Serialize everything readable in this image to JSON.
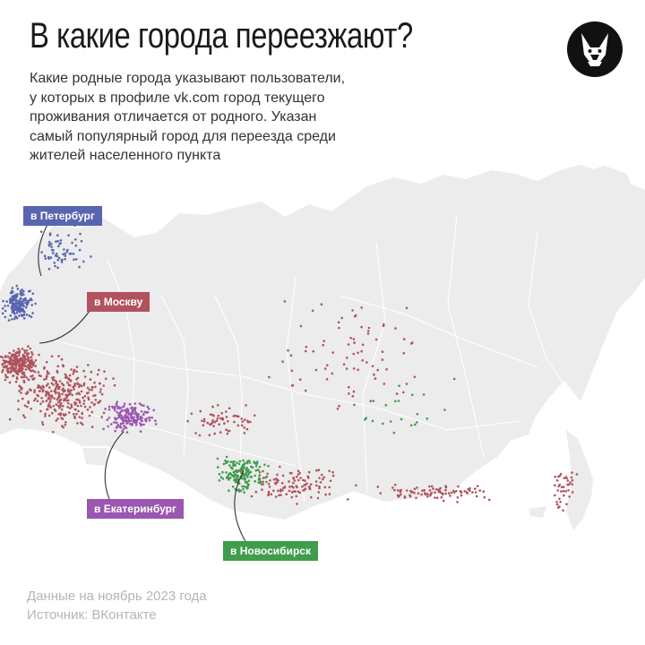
{
  "header": {
    "title": "В какие города переезжают?",
    "subtitle": "Какие родные города указывают пользователи, у которых в профиле vk.com город текущего проживания отличается от родного. Указан самый популярный город для переезда среди жителей населенного пункта",
    "logo_icon": "fox-head-icon"
  },
  "legend": {
    "spb": {
      "label": "в Петербург",
      "color": "#5865b0"
    },
    "msk": {
      "label": "в Москву",
      "color": "#b1525d"
    },
    "ekb": {
      "label": "в Екатеринбург",
      "color": "#9a56b0"
    },
    "nsk": {
      "label": "в Новосибирск",
      "color": "#3f9d4b"
    }
  },
  "map": {
    "land_color": "#ececec",
    "border_color": "#ffffff"
  },
  "footer": {
    "date_note": "Данные на ноябрь 2023 года",
    "source": "Источник: ВКонтакте"
  }
}
